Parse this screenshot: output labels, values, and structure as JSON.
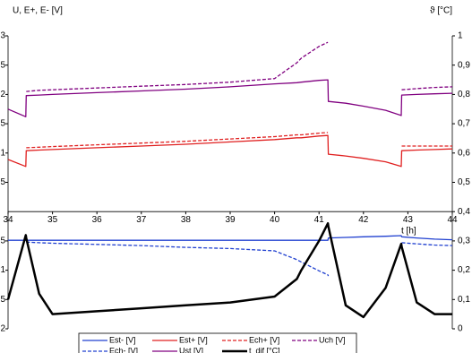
{
  "chart_data": {
    "type": "line",
    "y_label": "U, E+, E- [V]",
    "y2_label": "ϑ [°C]",
    "x_label": "t [h]",
    "x": [
      34,
      34.4,
      34.41,
      34.7,
      35,
      36,
      37,
      38,
      39,
      40,
      40.5,
      40.6,
      41,
      41.2,
      41.21,
      41.6,
      42,
      42.5,
      42.85,
      42.86,
      43.2,
      43.6,
      44
    ],
    "xlim": [
      34,
      44
    ],
    "xticks": [
      34,
      35,
      36,
      37,
      38,
      39,
      40,
      41,
      42,
      43,
      44
    ],
    "ylim": [
      -2,
      3
    ],
    "yticks": [
      3,
      {
        "value": 2.5,
        "label": "5"
      },
      2,
      {
        "value": 1.5,
        "label": "5"
      },
      1,
      {
        "value": 0.5,
        "label": "5"
      },
      {
        "value": -0.5,
        "label": "5"
      },
      {
        "value": -1,
        "label": "1"
      },
      {
        "value": -1.5,
        "label": "5"
      },
      {
        "value": -2,
        "label": "2"
      }
    ],
    "y2lim": [
      0,
      1
    ],
    "y2ticks": [
      1,
      {
        "value": 0.9,
        "label": "0,9"
      },
      {
        "value": 0.8,
        "label": "0,8"
      },
      {
        "value": 0.7,
        "label": "0,7"
      },
      {
        "value": 0.6,
        "label": "0,6"
      },
      {
        "value": 0.5,
        "label": "0,5"
      },
      {
        "value": 0.4,
        "label": "0,4"
      },
      {
        "value": 0.3,
        "label": "0,3"
      },
      {
        "value": 0.2,
        "label": "0,2"
      },
      {
        "value": 0.1,
        "label": "0,1"
      },
      0
    ],
    "series": [
      {
        "name": "Est- [V]",
        "color": "#2040d0",
        "dash": false,
        "width": 1.3,
        "values": [
          -0.49,
          -0.49,
          -0.49,
          -0.49,
          -0.49,
          -0.49,
          -0.49,
          -0.49,
          -0.49,
          -0.49,
          -0.49,
          -0.49,
          -0.49,
          -0.49,
          -0.45,
          -0.44,
          -0.43,
          -0.42,
          -0.41,
          -0.43,
          -0.45,
          -0.47,
          -0.48
        ]
      },
      {
        "name": "Est+ [V]",
        "color": "#e02020",
        "dash": false,
        "width": 1.3,
        "values": [
          0.89,
          0.77,
          1.04,
          1.05,
          1.06,
          1.09,
          1.12,
          1.15,
          1.19,
          1.23,
          1.26,
          1.26,
          1.29,
          1.3,
          0.98,
          0.95,
          0.91,
          0.85,
          0.77,
          1.04,
          1.05,
          1.06,
          1.07
        ]
      },
      {
        "name": "Ech+ [V]",
        "color": "#e02020",
        "dash": true,
        "width": 1.3,
        "values": [
          null,
          null,
          1.09,
          1.1,
          1.11,
          1.14,
          1.17,
          1.2,
          1.24,
          1.28,
          1.31,
          1.31,
          1.34,
          1.35,
          null,
          null,
          null,
          null,
          null,
          1.12,
          1.12,
          1.12,
          1.12
        ]
      },
      {
        "name": "Uch [V]",
        "color": "#800080",
        "dash": true,
        "width": 1.3,
        "values": [
          null,
          null,
          2.05,
          2.07,
          2.08,
          2.11,
          2.14,
          2.17,
          2.21,
          2.27,
          2.54,
          2.62,
          2.82,
          2.89,
          null,
          null,
          null,
          null,
          null,
          2.08,
          2.1,
          2.12,
          2.13
        ]
      },
      {
        "name": "Ech- [V]",
        "color": "#2040d0",
        "dash": true,
        "width": 1.3,
        "values": [
          null,
          null,
          -0.52,
          -0.53,
          -0.54,
          -0.56,
          -0.58,
          -0.61,
          -0.63,
          -0.67,
          -0.82,
          -0.86,
          -1.01,
          -1.08,
          -1.1,
          null,
          null,
          null,
          null,
          -0.53,
          -0.55,
          -0.57,
          -0.58
        ]
      },
      {
        "name": "Ust [V]",
        "color": "#800080",
        "dash": false,
        "width": 1.3,
        "values": [
          1.75,
          1.62,
          1.98,
          1.99,
          2.0,
          2.03,
          2.06,
          2.09,
          2.13,
          2.18,
          2.2,
          2.21,
          2.24,
          2.25,
          1.88,
          1.85,
          1.8,
          1.73,
          1.64,
          1.99,
          2.0,
          2.01,
          2.02
        ]
      },
      {
        "name": "t_dif [°C]",
        "color": "#000000",
        "dash": false,
        "width": 2.5,
        "axis": "y2",
        "values": [
          0.1,
          0.32,
          0.31,
          0.12,
          0.05,
          0.06,
          0.07,
          0.08,
          0.09,
          0.11,
          0.17,
          0.2,
          0.3,
          0.36,
          0.35,
          0.08,
          0.04,
          0.14,
          0.29,
          0.28,
          0.09,
          0.05,
          0.05
        ]
      }
    ]
  }
}
